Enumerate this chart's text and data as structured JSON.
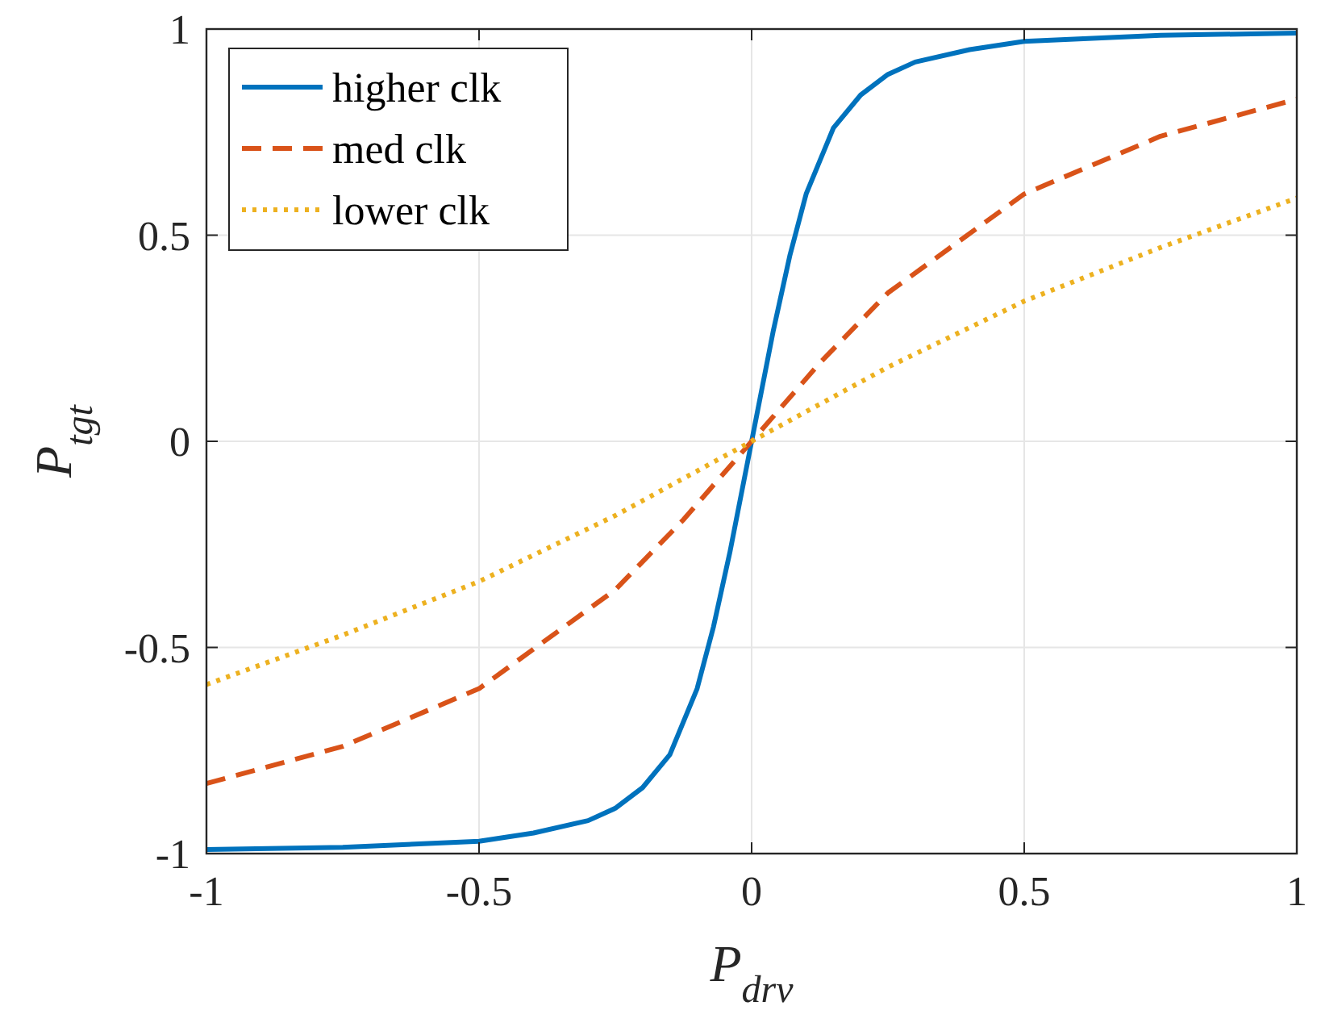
{
  "chart_data": {
    "type": "line",
    "xlabel": "P$_{drv}$",
    "ylabel": "P$_{tgt}$",
    "xlim": [
      -1,
      1
    ],
    "ylim": [
      -1,
      1
    ],
    "xticks": [
      -1,
      -0.5,
      0,
      0.5,
      1
    ],
    "yticks": [
      -1,
      -0.5,
      0,
      0.5,
      1
    ],
    "grid": true,
    "legend": "top left",
    "marker": "none",
    "series": [
      {
        "name": "higher clk",
        "color": "#0072bd",
        "line_style": "solid",
        "x": [
          -1,
          -0.75,
          -0.5,
          -0.4,
          -0.3,
          -0.25,
          -0.2,
          -0.15,
          -0.1,
          -0.07,
          -0.04,
          0,
          0.04,
          0.07,
          0.1,
          0.15,
          0.2,
          0.25,
          0.3,
          0.4,
          0.5,
          0.75,
          1
        ],
        "values": [
          -0.99,
          -0.985,
          -0.97,
          -0.95,
          -0.92,
          -0.89,
          -0.84,
          -0.76,
          -0.6,
          -0.45,
          -0.27,
          0,
          0.27,
          0.45,
          0.6,
          0.76,
          0.84,
          0.89,
          0.92,
          0.95,
          0.97,
          0.985,
          0.99
        ]
      },
      {
        "name": "med clk",
        "color": "#d95319",
        "line_style": "dashed",
        "x": [
          -1,
          -0.75,
          -0.5,
          -0.25,
          -0.125,
          0,
          0.125,
          0.25,
          0.5,
          0.75,
          1
        ],
        "values": [
          -0.83,
          -0.74,
          -0.6,
          -0.36,
          -0.19,
          0,
          0.19,
          0.36,
          0.6,
          0.74,
          0.83
        ]
      },
      {
        "name": "lower clk",
        "color": "#edb120",
        "line_style": "dotted",
        "x": [
          -1,
          -0.75,
          -0.5,
          -0.25,
          0,
          0.25,
          0.5,
          0.75,
          1
        ],
        "values": [
          -0.59,
          -0.47,
          -0.34,
          -0.18,
          0,
          0.18,
          0.34,
          0.47,
          0.59
        ]
      }
    ]
  }
}
